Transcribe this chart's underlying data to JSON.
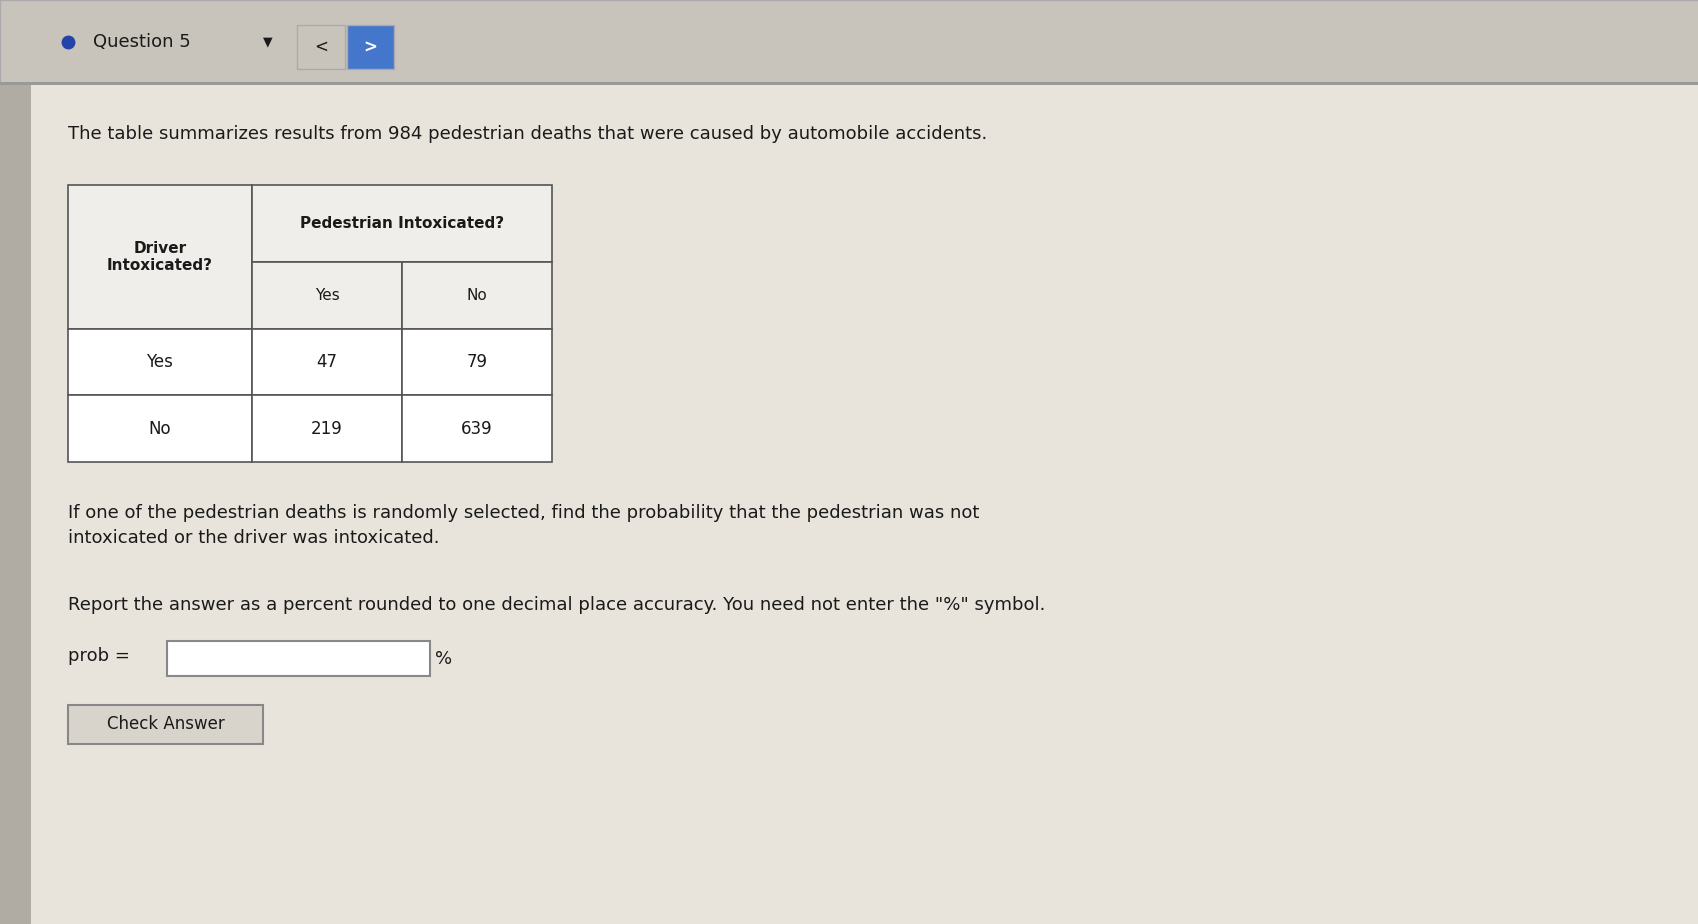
{
  "background_color": "#d4d0c8",
  "page_bg": "#e8e4dc",
  "header_text": "Question 5",
  "intro_text": "The table summarizes results from 984 pedestrian deaths that were caused by automobile accidents.",
  "col_header_1": "Driver\nIntoxicated?",
  "col_header_2": "Pedestrian Intoxicated?",
  "sub_header_yes": "Yes",
  "sub_header_no": "No",
  "row1_label": "Yes",
  "row1_yes": "47",
  "row1_no": "79",
  "row2_label": "No",
  "row2_yes": "219",
  "row2_no": "639",
  "question_text": "If one of the pedestrian deaths is randomly selected, find the probability that the pedestrian was not\nintoxicated or the driver was intoxicated.",
  "report_text": "Report the answer as a percent rounded to one decimal place accuracy. You need not enter the \"%\" symbol.",
  "prob_label": "prob =",
  "percent_symbol": "%",
  "button_text": "Check Answer",
  "header_bg": "#c8c4bc",
  "table_border_color": "#555555",
  "text_color": "#1a1a1a",
  "input_box_color": "#ffffff",
  "button_bg": "#d8d4cc",
  "button_border": "#888888",
  "separator_color": "#999999",
  "left_strip_color": "#b0aca4",
  "nav_box2_color": "#4477cc",
  "bullet_color": "#2244aa"
}
